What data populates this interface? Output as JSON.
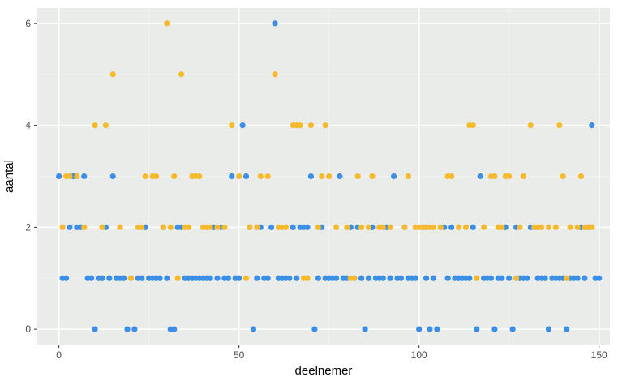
{
  "chart_data": {
    "type": "scatter",
    "title": "",
    "xlabel": "deelnemer",
    "ylabel": "aantal",
    "xlim": [
      -6,
      153
    ],
    "ylim": [
      -0.3,
      6.3
    ],
    "x_ticks": [
      0,
      50,
      100,
      150
    ],
    "y_ticks": [
      0,
      2,
      4,
      6
    ],
    "grid": true,
    "legend": "none",
    "colors": {
      "panel_bg": "#e9ece9",
      "grid_major": "#ffffff",
      "grid_minor": "#f3f4f3",
      "tick_label": "#4d4d4d",
      "blue": "#3c8ee6",
      "orange": "#f7ba2c"
    },
    "series": [
      {
        "color": "#3c8ee6",
        "points": [
          [
            0,
            3
          ],
          [
            1,
            1
          ],
          [
            2,
            1
          ],
          [
            3,
            2
          ],
          [
            4,
            3
          ],
          [
            5,
            2
          ],
          [
            6,
            2
          ],
          [
            7,
            3
          ],
          [
            8,
            1
          ],
          [
            9,
            1
          ],
          [
            10,
            0
          ],
          [
            11,
            1
          ],
          [
            12,
            1
          ],
          [
            13,
            2
          ],
          [
            14,
            1
          ],
          [
            15,
            3
          ],
          [
            16,
            1
          ],
          [
            17,
            1
          ],
          [
            18,
            1
          ],
          [
            19,
            0
          ],
          [
            20,
            1
          ],
          [
            21,
            0
          ],
          [
            22,
            1
          ],
          [
            23,
            1
          ],
          [
            24,
            2
          ],
          [
            25,
            1
          ],
          [
            26,
            1
          ],
          [
            27,
            1
          ],
          [
            28,
            1
          ],
          [
            29,
            2
          ],
          [
            30,
            1
          ],
          [
            31,
            0
          ],
          [
            32,
            0
          ],
          [
            33,
            2
          ],
          [
            34,
            2
          ],
          [
            35,
            1
          ],
          [
            36,
            1
          ],
          [
            37,
            1
          ],
          [
            38,
            1
          ],
          [
            39,
            1
          ],
          [
            40,
            1
          ],
          [
            41,
            1
          ],
          [
            42,
            1
          ],
          [
            43,
            2
          ],
          [
            44,
            1
          ],
          [
            45,
            2
          ],
          [
            46,
            1
          ],
          [
            47,
            1
          ],
          [
            48,
            3
          ],
          [
            49,
            1
          ],
          [
            50,
            1
          ],
          [
            51,
            4
          ],
          [
            52,
            3
          ],
          [
            53,
            2
          ],
          [
            54,
            0
          ],
          [
            55,
            1
          ],
          [
            56,
            2
          ],
          [
            57,
            1
          ],
          [
            58,
            1
          ],
          [
            59,
            2
          ],
          [
            60,
            6
          ],
          [
            61,
            1
          ],
          [
            62,
            1
          ],
          [
            63,
            1
          ],
          [
            64,
            1
          ],
          [
            65,
            2
          ],
          [
            66,
            1
          ],
          [
            67,
            2
          ],
          [
            68,
            2
          ],
          [
            69,
            2
          ],
          [
            70,
            3
          ],
          [
            71,
            0
          ],
          [
            72,
            1
          ],
          [
            73,
            2
          ],
          [
            74,
            1
          ],
          [
            75,
            1
          ],
          [
            76,
            1
          ],
          [
            77,
            1
          ],
          [
            78,
            3
          ],
          [
            79,
            1
          ],
          [
            80,
            1
          ],
          [
            81,
            2
          ],
          [
            82,
            1
          ],
          [
            83,
            2
          ],
          [
            84,
            1
          ],
          [
            85,
            0
          ],
          [
            86,
            1
          ],
          [
            87,
            2
          ],
          [
            88,
            1
          ],
          [
            89,
            1
          ],
          [
            90,
            1
          ],
          [
            91,
            2
          ],
          [
            92,
            1
          ],
          [
            93,
            3
          ],
          [
            94,
            1
          ],
          [
            95,
            1
          ],
          [
            96,
            2
          ],
          [
            97,
            1
          ],
          [
            98,
            1
          ],
          [
            99,
            1
          ],
          [
            100,
            0
          ],
          [
            101,
            2
          ],
          [
            102,
            1
          ],
          [
            103,
            0
          ],
          [
            104,
            1
          ],
          [
            105,
            0
          ],
          [
            106,
            2
          ],
          [
            107,
            2
          ],
          [
            108,
            1
          ],
          [
            109,
            2
          ],
          [
            110,
            1
          ],
          [
            111,
            1
          ],
          [
            112,
            1
          ],
          [
            113,
            1
          ],
          [
            114,
            1
          ],
          [
            115,
            2
          ],
          [
            116,
            0
          ],
          [
            117,
            3
          ],
          [
            118,
            1
          ],
          [
            119,
            1
          ],
          [
            120,
            1
          ],
          [
            121,
            0
          ],
          [
            122,
            1
          ],
          [
            123,
            1
          ],
          [
            124,
            2
          ],
          [
            125,
            1
          ],
          [
            126,
            0
          ],
          [
            127,
            2
          ],
          [
            128,
            1
          ],
          [
            129,
            1
          ],
          [
            130,
            1
          ],
          [
            131,
            2
          ],
          [
            132,
            2
          ],
          [
            133,
            1
          ],
          [
            134,
            1
          ],
          [
            135,
            1
          ],
          [
            136,
            0
          ],
          [
            137,
            1
          ],
          [
            138,
            1
          ],
          [
            139,
            1
          ],
          [
            140,
            1
          ],
          [
            141,
            0
          ],
          [
            142,
            1
          ],
          [
            143,
            1
          ],
          [
            144,
            1
          ],
          [
            145,
            2
          ],
          [
            146,
            1
          ],
          [
            147,
            2
          ],
          [
            148,
            4
          ],
          [
            149,
            1
          ],
          [
            150,
            1
          ]
        ]
      },
      {
        "color": "#f7ba2c",
        "points": [
          [
            1,
            2
          ],
          [
            2,
            3
          ],
          [
            3,
            3
          ],
          [
            5,
            3
          ],
          [
            7,
            2
          ],
          [
            10,
            4
          ],
          [
            12,
            2
          ],
          [
            13,
            4
          ],
          [
            15,
            5
          ],
          [
            17,
            2
          ],
          [
            20,
            1
          ],
          [
            22,
            2
          ],
          [
            23,
            2
          ],
          [
            24,
            3
          ],
          [
            26,
            3
          ],
          [
            27,
            3
          ],
          [
            29,
            2
          ],
          [
            30,
            6
          ],
          [
            31,
            2
          ],
          [
            32,
            3
          ],
          [
            33,
            1
          ],
          [
            34,
            5
          ],
          [
            35,
            2
          ],
          [
            36,
            2
          ],
          [
            37,
            3
          ],
          [
            38,
            3
          ],
          [
            39,
            3
          ],
          [
            40,
            2
          ],
          [
            41,
            2
          ],
          [
            42,
            2
          ],
          [
            44,
            2
          ],
          [
            46,
            2
          ],
          [
            48,
            4
          ],
          [
            50,
            3
          ],
          [
            52,
            1
          ],
          [
            53,
            2
          ],
          [
            55,
            2
          ],
          [
            56,
            3
          ],
          [
            58,
            3
          ],
          [
            60,
            5
          ],
          [
            61,
            2
          ],
          [
            62,
            2
          ],
          [
            63,
            2
          ],
          [
            65,
            4
          ],
          [
            66,
            4
          ],
          [
            67,
            4
          ],
          [
            68,
            1
          ],
          [
            69,
            1
          ],
          [
            70,
            4
          ],
          [
            72,
            2
          ],
          [
            73,
            3
          ],
          [
            74,
            4
          ],
          [
            75,
            3
          ],
          [
            77,
            2
          ],
          [
            80,
            2
          ],
          [
            81,
            1
          ],
          [
            82,
            1
          ],
          [
            83,
            3
          ],
          [
            84,
            2
          ],
          [
            86,
            2
          ],
          [
            87,
            3
          ],
          [
            89,
            2
          ],
          [
            90,
            2
          ],
          [
            92,
            2
          ],
          [
            96,
            2
          ],
          [
            97,
            3
          ],
          [
            99,
            2
          ],
          [
            100,
            2
          ],
          [
            101,
            2
          ],
          [
            102,
            2
          ],
          [
            103,
            2
          ],
          [
            104,
            2
          ],
          [
            106,
            2
          ],
          [
            108,
            3
          ],
          [
            109,
            3
          ],
          [
            111,
            2
          ],
          [
            113,
            2
          ],
          [
            114,
            4
          ],
          [
            115,
            4
          ],
          [
            116,
            1
          ],
          [
            118,
            2
          ],
          [
            120,
            3
          ],
          [
            121,
            3
          ],
          [
            122,
            2
          ],
          [
            123,
            2
          ],
          [
            124,
            3
          ],
          [
            125,
            3
          ],
          [
            127,
            1
          ],
          [
            128,
            2
          ],
          [
            129,
            3
          ],
          [
            131,
            4
          ],
          [
            132,
            2
          ],
          [
            133,
            2
          ],
          [
            134,
            2
          ],
          [
            136,
            2
          ],
          [
            138,
            2
          ],
          [
            139,
            4
          ],
          [
            140,
            3
          ],
          [
            141,
            1
          ],
          [
            142,
            2
          ],
          [
            144,
            2
          ],
          [
            145,
            3
          ],
          [
            146,
            2
          ],
          [
            147,
            2
          ],
          [
            148,
            2
          ]
        ]
      }
    ]
  }
}
